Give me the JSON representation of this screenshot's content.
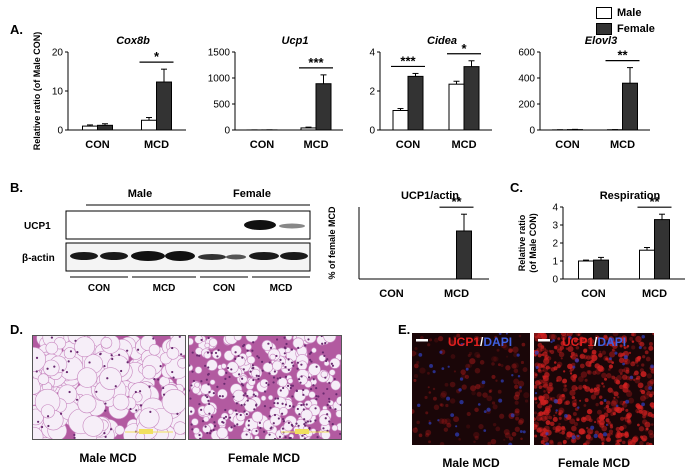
{
  "colors": {
    "male": "#ffffff",
    "female": "#333333",
    "axis": "#000000",
    "blot_band": "#1a1a1a",
    "histo_bg": "#e8d8ec",
    "histo_cell": "#f6eef8",
    "histo_stroma": "#b25aa0",
    "fluor_bg": "#1a0608",
    "fluor_red": "#d02020",
    "fluor_blue": "#3040c0",
    "scale_bar_yellow": "#f0e060",
    "label_red": "#e02020",
    "label_blue": "#4060e0"
  },
  "legend": {
    "male": "Male",
    "female": "Female"
  },
  "panel_letters": {
    "a": "A.",
    "b": "B.",
    "c": "C.",
    "d": "D.",
    "e": "E."
  },
  "chart_data": [
    {
      "id": "cox8b",
      "type": "bar",
      "title": "Cox8b",
      "ylabel": "Relative ratio (of Male CON)",
      "categories": [
        "CON",
        "MCD"
      ],
      "ylim": [
        0,
        20
      ],
      "yticks": [
        0,
        10,
        20
      ],
      "series": [
        {
          "name": "Male",
          "values": [
            1.0,
            2.5
          ],
          "errors": [
            0.3,
            0.7
          ]
        },
        {
          "name": "Female",
          "values": [
            1.2,
            12.3
          ],
          "errors": [
            0.4,
            3.3
          ]
        }
      ],
      "significance": [
        {
          "category": "MCD",
          "label": "*"
        }
      ]
    },
    {
      "id": "ucp1",
      "type": "bar",
      "title": "Ucp1",
      "ylabel": "",
      "categories": [
        "CON",
        "MCD"
      ],
      "ylim": [
        0,
        1500
      ],
      "yticks": [
        0,
        500,
        1000,
        1500
      ],
      "series": [
        {
          "name": "Male",
          "values": [
            1,
            40
          ],
          "errors": [
            1,
            15
          ]
        },
        {
          "name": "Female",
          "values": [
            2,
            890
          ],
          "errors": [
            1,
            170
          ]
        }
      ],
      "significance": [
        {
          "category": "MCD",
          "label": "***"
        }
      ]
    },
    {
      "id": "cidea",
      "type": "bar",
      "title": "Cidea",
      "ylabel": "",
      "categories": [
        "CON",
        "MCD"
      ],
      "ylim": [
        0,
        4
      ],
      "yticks": [
        0,
        2,
        4
      ],
      "series": [
        {
          "name": "Male",
          "values": [
            1.0,
            2.35
          ],
          "errors": [
            0.1,
            0.15
          ]
        },
        {
          "name": "Female",
          "values": [
            2.75,
            3.25
          ],
          "errors": [
            0.15,
            0.3
          ]
        }
      ],
      "significance": [
        {
          "category": "CON",
          "label": "***"
        },
        {
          "category": "MCD",
          "label": "*"
        }
      ]
    },
    {
      "id": "elovl3",
      "type": "bar",
      "title": "Elovl3",
      "ylabel": "",
      "categories": [
        "CON",
        "MCD"
      ],
      "ylim": [
        0,
        600
      ],
      "yticks": [
        0,
        200,
        400,
        600
      ],
      "series": [
        {
          "name": "Male",
          "values": [
            1,
            2
          ],
          "errors": [
            1,
            1
          ]
        },
        {
          "name": "Female",
          "values": [
            3,
            360
          ],
          "errors": [
            2,
            120
          ]
        }
      ],
      "significance": [
        {
          "category": "MCD",
          "label": "**"
        }
      ]
    },
    {
      "id": "ucp1-actin",
      "type": "bar",
      "title": "UCP1/actin",
      "ylabel": "% of female MCD",
      "categories": [
        "CON",
        "MCD"
      ],
      "ylim": [
        0,
        150
      ],
      "yticks": [],
      "series": [
        {
          "name": "Male",
          "values": [
            0,
            0
          ],
          "errors": [
            0,
            0
          ]
        },
        {
          "name": "Female",
          "values": [
            0,
            100
          ],
          "errors": [
            0,
            35
          ]
        }
      ],
      "significance": [
        {
          "category": "MCD",
          "label": "**"
        }
      ]
    },
    {
      "id": "respiration",
      "type": "bar",
      "title": "Respiration",
      "ylabel": "Relative ratio (of Male CON)",
      "categories": [
        "CON",
        "MCD"
      ],
      "ylim": [
        0,
        4
      ],
      "yticks": [
        0,
        1,
        2,
        3,
        4
      ],
      "series": [
        {
          "name": "Male",
          "values": [
            1.0,
            1.6
          ],
          "errors": [
            0.05,
            0.15
          ]
        },
        {
          "name": "Female",
          "values": [
            1.05,
            3.3
          ],
          "errors": [
            0.15,
            0.3
          ]
        }
      ],
      "significance": [
        {
          "category": "MCD",
          "label": "**"
        }
      ]
    }
  ],
  "blot": {
    "groups": [
      "Male",
      "Female"
    ],
    "rows": [
      "UCP1",
      "β-actin"
    ],
    "lanes": [
      "CON",
      "MCD",
      "CON",
      "MCD"
    ]
  },
  "images_d": {
    "left": "Male MCD",
    "right": "Female MCD"
  },
  "images_e": {
    "left": "Male MCD",
    "right": "Female MCD",
    "stain_a": "UCP1",
    "sep": "/",
    "stain_b": "DAPI"
  }
}
